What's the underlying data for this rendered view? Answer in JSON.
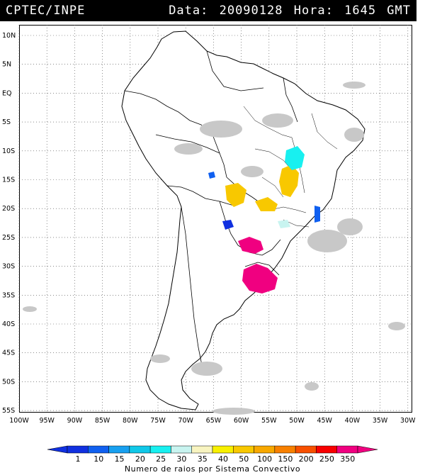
{
  "header": {
    "organization": "CPTEC/INPE",
    "timestamp": "Data: 20090128 Hora: 1645 GMT"
  },
  "map": {
    "region": "South America",
    "lat_labels": [
      "10N",
      "5N",
      "EQ",
      "5S",
      "10S",
      "15S",
      "20S",
      "25S",
      "30S",
      "35S",
      "40S",
      "45S",
      "50S",
      "55S"
    ],
    "lon_labels": [
      "100W",
      "95W",
      "90W",
      "85W",
      "80W",
      "75W",
      "70W",
      "65W",
      "60W",
      "55W",
      "50W",
      "45W",
      "40W",
      "35W",
      "30W"
    ],
    "gridlines": "dotted"
  },
  "legend": {
    "values": [
      "1",
      "10",
      "15",
      "20",
      "25",
      "30",
      "35",
      "40",
      "50",
      "100",
      "150",
      "200",
      "250",
      "350"
    ],
    "colors": [
      "#1030e0",
      "#1060f0",
      "#18a0f0",
      "#10c8e8",
      "#18f0f0",
      "#c8f4f0",
      "#f8f4c0",
      "#f8f000",
      "#f8c800",
      "#f8a800",
      "#f88000",
      "#f85000",
      "#f80000",
      "#f00080"
    ],
    "caption": "Numero de raios por Sistema Convectivo"
  },
  "cells": [
    {
      "intensity_index": 13
    },
    {
      "intensity_index": 8
    },
    {
      "intensity_index": 4
    }
  ]
}
